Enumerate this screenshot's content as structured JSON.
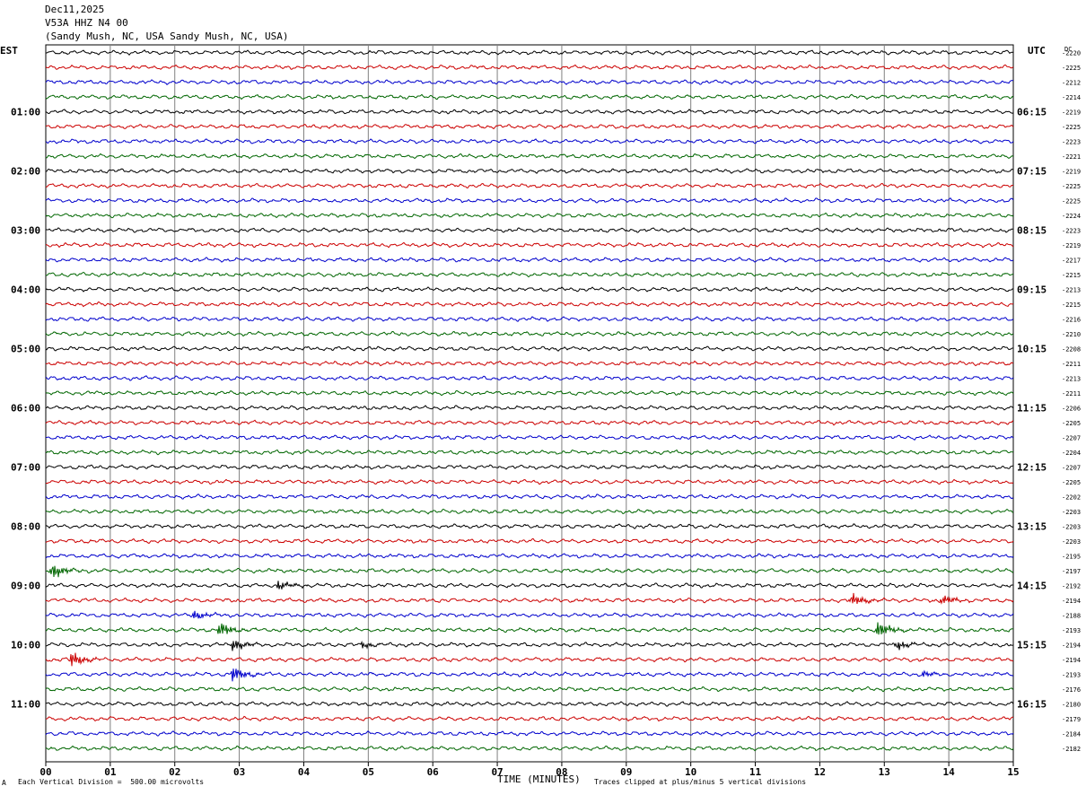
{
  "header": {
    "date": "Dec11,2025",
    "station": "V53A HHZ N4 00",
    "location": "(Sandy Mush, NC, USA Sandy Mush, NC, USA)"
  },
  "labels": {
    "left_tz": "EST",
    "right_tz": "UTC",
    "dc": "DC",
    "xlabel": "TIME (MINUTES)",
    "scale_note": "Each Vertical Division =  500.00 microvolts",
    "clip_note": "Traces clipped at plus/minus 5 vertical divisions",
    "corner_mark": "A"
  },
  "colors": {
    "cycle": [
      "#000000",
      "#cc0000",
      "#0000cc",
      "#006600"
    ],
    "grid": "#808080"
  },
  "chart_data": {
    "type": "line",
    "x_ticks": [
      "00",
      "01",
      "02",
      "03",
      "04",
      "05",
      "06",
      "07",
      "08",
      "09",
      "10",
      "11",
      "12",
      "13",
      "14",
      "15"
    ],
    "xlim": [
      0,
      15
    ],
    "left_hour_labels": [
      "01:00",
      "02:00",
      "03:00",
      "04:00",
      "05:00",
      "06:00",
      "07:00",
      "08:00",
      "09:00",
      "10:00",
      "11:00"
    ],
    "right_hour_labels": [
      "06:15",
      "07:15",
      "08:15",
      "09:15",
      "10:15",
      "11:15",
      "12:15",
      "13:15",
      "14:15",
      "15:15",
      "16:15"
    ],
    "dc_offsets": [
      2220,
      2225,
      2212,
      2214,
      2219,
      2225,
      2223,
      2221,
      2219,
      2225,
      2225,
      2224,
      2223,
      2219,
      2217,
      2215,
      2213,
      2215,
      2216,
      2210,
      2208,
      2211,
      2213,
      2211,
      2206,
      2205,
      2207,
      2204,
      2207,
      2205,
      2202,
      2203,
      2203,
      2203,
      2195,
      2197,
      2192,
      2194,
      2188,
      2193,
      2194,
      2194,
      2193,
      2176,
      2180,
      2179,
      2184,
      2182
    ],
    "events": [
      {
        "trace": 35,
        "minute": 0.1,
        "amp": 5
      },
      {
        "trace": 36,
        "minute": 3.6,
        "amp": 3
      },
      {
        "trace": 37,
        "minute": 12.5,
        "amp": 4
      },
      {
        "trace": 37,
        "minute": 13.9,
        "amp": 3
      },
      {
        "trace": 38,
        "minute": 2.3,
        "amp": 3
      },
      {
        "trace": 39,
        "minute": 2.7,
        "amp": 5
      },
      {
        "trace": 39,
        "minute": 12.9,
        "amp": 5
      },
      {
        "trace": 40,
        "minute": 2.9,
        "amp": 4
      },
      {
        "trace": 40,
        "minute": 13.2,
        "amp": 3
      },
      {
        "trace": 40,
        "minute": 4.9,
        "amp": 2
      },
      {
        "trace": 41,
        "minute": 0.4,
        "amp": 5
      },
      {
        "trace": 42,
        "minute": 2.9,
        "amp": 5
      },
      {
        "trace": 42,
        "minute": 13.6,
        "amp": 2
      }
    ]
  }
}
